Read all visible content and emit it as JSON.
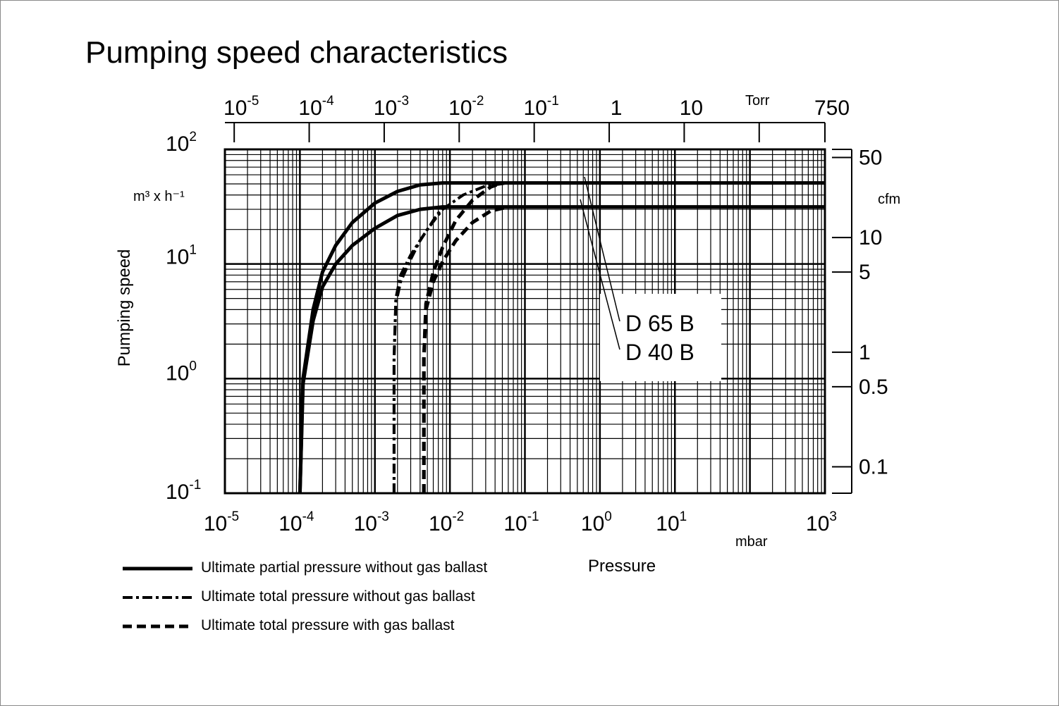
{
  "chart_data": {
    "type": "line",
    "title": "Pumping speed characteristics",
    "xlabel": "Pressure",
    "ylabel": "Pumping speed",
    "x_unit": "mbar",
    "y_unit": "m³ x h⁻¹",
    "x_scale": "log",
    "y_scale": "log",
    "xlim": [
      1e-05,
      1000
    ],
    "ylim": [
      0.1,
      100
    ],
    "x_ticks": [
      {
        "value": 1e-05,
        "base": "10",
        "exp": "-5"
      },
      {
        "value": 0.0001,
        "base": "10",
        "exp": "-4"
      },
      {
        "value": 0.001,
        "base": "10",
        "exp": "-3"
      },
      {
        "value": 0.01,
        "base": "10",
        "exp": "-2"
      },
      {
        "value": 0.1,
        "base": "10",
        "exp": "-1"
      },
      {
        "value": 1,
        "base": "10",
        "exp": "0"
      },
      {
        "value": 10,
        "base": "10",
        "exp": "1"
      },
      {
        "value": 1000,
        "base": "10",
        "exp": "3"
      }
    ],
    "y_ticks": [
      {
        "value": 100,
        "base": "10",
        "exp": "2"
      },
      {
        "value": 10,
        "base": "10",
        "exp": "1"
      },
      {
        "value": 1,
        "base": "10",
        "exp": "0"
      },
      {
        "value": 0.1,
        "base": "10",
        "exp": "-1"
      }
    ],
    "top_axis": {
      "unit": "Torr",
      "ticks": [
        {
          "value_mbar": 1.33e-05,
          "base": "10",
          "exp": "-5"
        },
        {
          "value_mbar": 0.000133,
          "base": "10",
          "exp": "-4"
        },
        {
          "value_mbar": 0.00133,
          "base": "10",
          "exp": "-3"
        },
        {
          "value_mbar": 0.0133,
          "base": "10",
          "exp": "-2"
        },
        {
          "value_mbar": 0.133,
          "base": "10",
          "exp": "-1"
        },
        {
          "value_mbar": 1.33,
          "base": "1",
          "exp": ""
        },
        {
          "value_mbar": 13.3,
          "base": "10",
          "exp": ""
        },
        {
          "value_mbar": 133,
          "base": "",
          "exp": ""
        },
        {
          "value_mbar": 1000,
          "base": "750",
          "exp": ""
        }
      ]
    },
    "right_axis": {
      "unit": "cfm",
      "ticks": [
        {
          "value_m3h": 85,
          "label": "50"
        },
        {
          "value_m3h": 17,
          "label": "10"
        },
        {
          "value_m3h": 8.5,
          "label": "5"
        },
        {
          "value_m3h": 1.7,
          "label": "1"
        },
        {
          "value_m3h": 0.85,
          "label": "0.5"
        },
        {
          "value_m3h": 0.17,
          "label": "0.1"
        }
      ]
    },
    "series": [
      {
        "name": "D 65 B",
        "style": "solid",
        "x": [
          0.0001,
          0.00011,
          0.00015,
          0.0002,
          0.0003,
          0.0005,
          0.001,
          0.002,
          0.004,
          0.008,
          1000
        ],
        "y": [
          0.1,
          1.0,
          4.0,
          8.5,
          14.5,
          23.0,
          34.0,
          43.0,
          49.0,
          51.0,
          51.0
        ]
      },
      {
        "name": "D 40 B",
        "style": "solid",
        "x": [
          0.0001,
          0.00011,
          0.00015,
          0.0002,
          0.0003,
          0.0005,
          0.001,
          0.002,
          0.004,
          0.008,
          1000
        ],
        "y": [
          0.1,
          0.9,
          3.2,
          6.3,
          10.0,
          14.5,
          20.5,
          26.5,
          30.0,
          31.5,
          31.5
        ]
      },
      {
        "name": "D 65 B",
        "style": "dashdot",
        "x": [
          0.0018,
          0.0018,
          0.0019,
          0.0022,
          0.003,
          0.005,
          0.008,
          0.015,
          0.03,
          0.06
        ],
        "y": [
          0.1,
          1.5,
          5.0,
          8.0,
          12.0,
          20.0,
          30.0,
          40.0,
          48.0,
          51.0
        ]
      },
      {
        "name": "D 40 B",
        "style": "dashdot",
        "x": [
          0.0018,
          0.0018,
          0.0019,
          0.0022,
          0.003,
          0.004,
          0.006,
          0.008
        ],
        "y": [
          0.1,
          1.5,
          4.5,
          7.0,
          11.0,
          16.0,
          24.0,
          31.5
        ]
      },
      {
        "name": "D 65 B",
        "style": "dashed",
        "x": [
          0.0045,
          0.0045,
          0.0048,
          0.006,
          0.008,
          0.012,
          0.02,
          0.035,
          0.05
        ],
        "y": [
          0.1,
          1.5,
          4.5,
          8.5,
          14.0,
          24.0,
          36.0,
          47.0,
          51.0
        ]
      },
      {
        "name": "D 40 B",
        "style": "dashed",
        "x": [
          0.0045,
          0.0045,
          0.0048,
          0.006,
          0.008,
          0.012,
          0.02,
          0.035,
          0.06
        ],
        "y": [
          0.1,
          1.5,
          4.0,
          7.0,
          10.5,
          16.0,
          23.0,
          29.0,
          31.5
        ]
      }
    ],
    "annotations": [
      "D 65 B",
      "D 40 B"
    ],
    "legend": [
      {
        "style": "solid",
        "label": "Ultimate partial pressure without gas ballast"
      },
      {
        "style": "dashdot",
        "label": "Ultimate total pressure without gas ballast"
      },
      {
        "style": "dashed",
        "label": "Ultimate total pressure with gas ballast"
      }
    ],
    "legend_position": "bottom-left",
    "grid": true
  }
}
